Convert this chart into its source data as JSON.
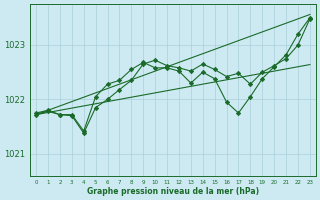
{
  "title": "Graphe pression niveau de la mer (hPa)",
  "background_color": "#cdeaf2",
  "grid_color": "#aacfdc",
  "line_color": "#1a6b2a",
  "x_labels": [
    "0",
    "1",
    "2",
    "3",
    "4",
    "5",
    "6",
    "7",
    "8",
    "9",
    "10",
    "11",
    "12",
    "13",
    "14",
    "15",
    "16",
    "17",
    "18",
    "19",
    "20",
    "21",
    "22",
    "23"
  ],
  "xlim": [
    -0.5,
    23.5
  ],
  "ylim": [
    1020.6,
    1023.75
  ],
  "yticks": [
    1021,
    1022,
    1023
  ],
  "series_zigzag1": [
    1021.75,
    1021.8,
    1021.72,
    1021.72,
    1021.42,
    1022.05,
    1022.28,
    1022.35,
    1022.55,
    1022.68,
    1022.58,
    1022.58,
    1022.52,
    1022.3,
    1022.5,
    1022.38,
    1021.95,
    1021.75,
    1022.05,
    1022.38,
    1022.6,
    1022.82,
    1023.2,
    1023.5
  ],
  "series_zigzag2": [
    1021.72,
    1021.78,
    1021.72,
    1021.7,
    1021.38,
    1021.85,
    1022.0,
    1022.18,
    1022.35,
    1022.65,
    1022.72,
    1022.62,
    1022.58,
    1022.52,
    1022.65,
    1022.55,
    1022.42,
    1022.48,
    1022.28,
    1022.5,
    1022.62,
    1022.75,
    1023.0,
    1023.48
  ],
  "series_linear1": [
    1021.72,
    1021.8,
    1021.88,
    1021.96,
    1022.04,
    1022.12,
    1022.2,
    1022.28,
    1022.36,
    1022.44,
    1022.52,
    1022.6,
    1022.68,
    1022.76,
    1022.84,
    1022.92,
    1023.0,
    1023.08,
    1023.16,
    1023.24,
    1023.32,
    1023.4,
    1023.48,
    1023.56
  ],
  "series_linear2": [
    1021.72,
    1021.76,
    1021.8,
    1021.84,
    1021.88,
    1021.92,
    1021.96,
    1022.0,
    1022.04,
    1022.08,
    1022.12,
    1022.16,
    1022.2,
    1022.24,
    1022.28,
    1022.32,
    1022.36,
    1022.4,
    1022.44,
    1022.48,
    1022.52,
    1022.56,
    1022.6,
    1022.64
  ]
}
